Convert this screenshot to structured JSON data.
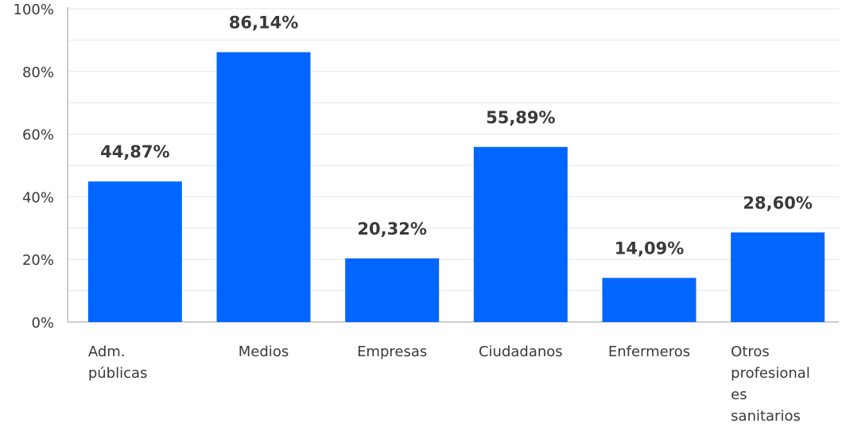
{
  "chart_data": {
    "type": "bar",
    "categories": [
      [
        "Adm.",
        "públicas"
      ],
      [
        "Medios"
      ],
      [
        "Empresas"
      ],
      [
        "Ciudadanos"
      ],
      [
        "Enfermeros"
      ],
      [
        "Otros",
        "profesional",
        "es",
        "sanitarios"
      ]
    ],
    "values": [
      44.87,
      86.14,
      20.32,
      55.89,
      14.09,
      28.6
    ],
    "data_labels": [
      "44,87%",
      "86,14%",
      "20,32%",
      "55,89%",
      "14,09%",
      "28,60%"
    ],
    "y_ticks": [
      "0%",
      "20%",
      "40%",
      "60%",
      "80%",
      "100%"
    ],
    "ylim": [
      0,
      100
    ],
    "grid": true,
    "bar_color": "#0066ff",
    "title": "",
    "xlabel": "",
    "ylabel": ""
  }
}
